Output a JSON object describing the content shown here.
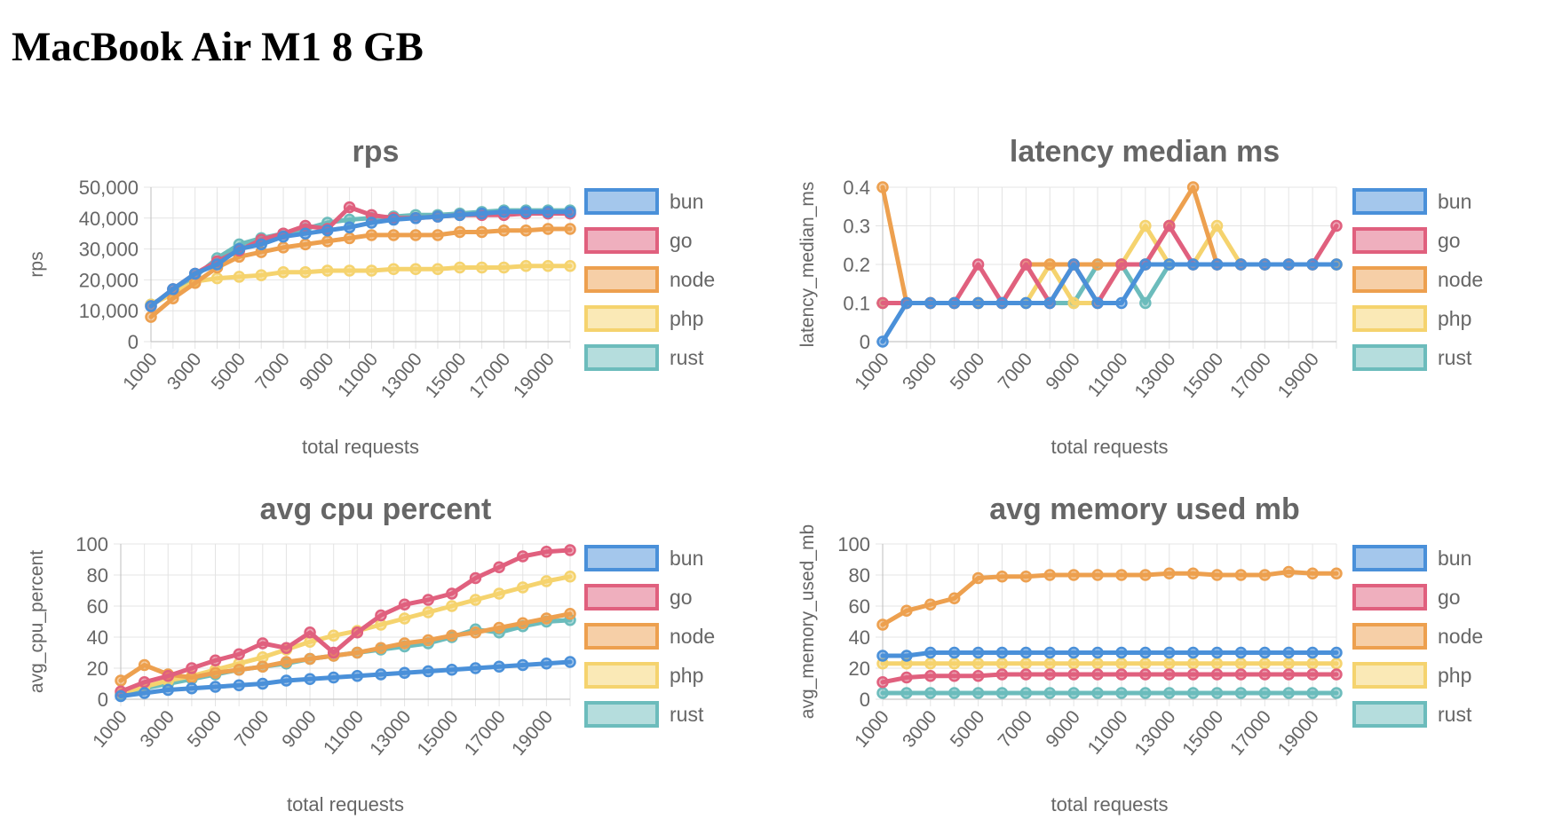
{
  "page": {
    "title": "MacBook Air M1 8 GB"
  },
  "colors": {
    "bun": "#4a90d9",
    "go": "#e0607e",
    "node": "#eda04f",
    "php": "#f5d36e",
    "rust": "#6cbcbc"
  },
  "chart_data": [
    {
      "type": "line",
      "title": "rps",
      "xlabel": "total requests",
      "ylabel": "rps",
      "ylim": [
        0,
        50000
      ],
      "yticks": [
        0,
        10000,
        20000,
        30000,
        40000,
        50000
      ],
      "ytick_labels": [
        "0",
        "10,000",
        "20,000",
        "30,000",
        "40,000",
        "50,000"
      ],
      "x": [
        1000,
        2000,
        3000,
        4000,
        5000,
        6000,
        7000,
        8000,
        9000,
        10000,
        11000,
        12000,
        13000,
        14000,
        15000,
        16000,
        17000,
        18000,
        19000,
        20000
      ],
      "xtick_labels": [
        "1000",
        "3000",
        "5000",
        "7000",
        "9000",
        "11000",
        "13000",
        "15000",
        "17000",
        "19000"
      ],
      "series": [
        {
          "name": "rust",
          "values": [
            12000,
            16000,
            21000,
            27000,
            31500,
            33500,
            35000,
            36500,
            38500,
            39500,
            40000,
            40500,
            41000,
            41000,
            41500,
            42000,
            42500,
            42500,
            42500,
            42500
          ]
        },
        {
          "name": "php",
          "values": [
            12000,
            15500,
            19500,
            20500,
            21000,
            21500,
            22500,
            22500,
            23000,
            23000,
            23000,
            23500,
            23500,
            23500,
            24000,
            24000,
            24000,
            24500,
            24500,
            24500
          ]
        },
        {
          "name": "node",
          "values": [
            8000,
            14000,
            19000,
            24000,
            27500,
            29000,
            30500,
            31500,
            32500,
            33500,
            34500,
            34500,
            34500,
            34500,
            35500,
            35500,
            36000,
            36000,
            36500,
            36500
          ]
        },
        {
          "name": "go",
          "values": [
            11500,
            17000,
            22000,
            26000,
            29500,
            33000,
            35000,
            37500,
            36500,
            43500,
            41000,
            40000,
            40000,
            40500,
            41000,
            41000,
            41000,
            41500,
            41500,
            41500
          ]
        },
        {
          "name": "bun",
          "values": [
            11500,
            17000,
            22000,
            25000,
            30000,
            31500,
            34000,
            35000,
            36000,
            37000,
            38500,
            39500,
            40000,
            40500,
            41000,
            41500,
            42000,
            42000,
            42000,
            42000
          ]
        }
      ],
      "legend": [
        "bun",
        "go",
        "node",
        "php",
        "rust"
      ]
    },
    {
      "type": "line",
      "title": "latency median ms",
      "xlabel": "total requests",
      "ylabel": "latency_median_ms",
      "ylim": [
        0,
        0.4
      ],
      "yticks": [
        0,
        0.1,
        0.2,
        0.3,
        0.4
      ],
      "ytick_labels": [
        "0",
        "0.1",
        "0.2",
        "0.3",
        "0.4"
      ],
      "x": [
        1000,
        2000,
        3000,
        4000,
        5000,
        6000,
        7000,
        8000,
        9000,
        10000,
        11000,
        12000,
        13000,
        14000,
        15000,
        16000,
        17000,
        18000,
        19000,
        20000
      ],
      "xtick_labels": [
        "1000",
        "3000",
        "5000",
        "7000",
        "9000",
        "11000",
        "13000",
        "15000",
        "17000",
        "19000"
      ],
      "series": [
        {
          "name": "rust",
          "values": [
            0.1,
            0.1,
            0.1,
            0.1,
            0.1,
            0.1,
            0.1,
            0.1,
            0.1,
            0.2,
            0.2,
            0.1,
            0.2,
            0.2,
            0.2,
            0.2,
            0.2,
            0.2,
            0.2,
            0.2
          ]
        },
        {
          "name": "php",
          "values": [
            0.1,
            0.1,
            0.1,
            0.1,
            0.1,
            0.1,
            0.1,
            0.2,
            0.1,
            0.1,
            0.2,
            0.3,
            0.2,
            0.2,
            0.3,
            0.2,
            0.2,
            0.2,
            0.2,
            0.2
          ]
        },
        {
          "name": "node",
          "values": [
            0.4,
            0.1,
            0.1,
            0.1,
            0.1,
            0.1,
            0.2,
            0.2,
            0.2,
            0.2,
            0.2,
            0.2,
            0.3,
            0.4,
            0.2,
            0.2,
            0.2,
            0.2,
            0.2,
            0.2
          ]
        },
        {
          "name": "go",
          "values": [
            0.1,
            0.1,
            0.1,
            0.1,
            0.2,
            0.1,
            0.2,
            0.1,
            0.2,
            0.1,
            0.2,
            0.2,
            0.3,
            0.2,
            0.2,
            0.2,
            0.2,
            0.2,
            0.2,
            0.3
          ]
        },
        {
          "name": "bun",
          "values": [
            0.0,
            0.1,
            0.1,
            0.1,
            0.1,
            0.1,
            0.1,
            0.1,
            0.2,
            0.1,
            0.1,
            0.2,
            0.2,
            0.2,
            0.2,
            0.2,
            0.2,
            0.2,
            0.2,
            0.2
          ]
        }
      ],
      "legend": [
        "bun",
        "go",
        "node",
        "php",
        "rust"
      ]
    },
    {
      "type": "line",
      "title": "avg cpu percent",
      "xlabel": "total requests",
      "ylabel": "avg_cpu_percent",
      "ylim": [
        0,
        100
      ],
      "yticks": [
        0,
        20,
        40,
        60,
        80,
        100
      ],
      "ytick_labels": [
        "0",
        "20",
        "40",
        "60",
        "80",
        "100"
      ],
      "x": [
        1000,
        2000,
        3000,
        4000,
        5000,
        6000,
        7000,
        8000,
        9000,
        10000,
        11000,
        12000,
        13000,
        14000,
        15000,
        16000,
        17000,
        18000,
        19000,
        20000
      ],
      "xtick_labels": [
        "1000",
        "3000",
        "5000",
        "7000",
        "9000",
        "11000",
        "13000",
        "15000",
        "17000",
        "19000"
      ],
      "series": [
        {
          "name": "rust",
          "values": [
            3,
            7,
            10,
            13,
            16,
            19,
            21,
            23,
            26,
            28,
            30,
            32,
            34,
            36,
            40,
            45,
            43,
            47,
            50,
            51
          ]
        },
        {
          "name": "php",
          "values": [
            4,
            8,
            12,
            15,
            19,
            23,
            27,
            32,
            37,
            41,
            44,
            48,
            52,
            56,
            60,
            64,
            68,
            72,
            76,
            79
          ]
        },
        {
          "name": "node",
          "values": [
            12,
            22,
            16,
            14,
            17,
            19,
            21,
            24,
            26,
            28,
            30,
            33,
            36,
            38,
            41,
            43,
            46,
            49,
            52,
            55
          ]
        },
        {
          "name": "go",
          "values": [
            5,
            11,
            15,
            20,
            25,
            29,
            36,
            33,
            43,
            30,
            43,
            54,
            61,
            64,
            68,
            78,
            85,
            92,
            95,
            96
          ]
        },
        {
          "name": "bun",
          "values": [
            2,
            4,
            6,
            7,
            8,
            9,
            10,
            12,
            13,
            14,
            15,
            16,
            17,
            18,
            19,
            20,
            21,
            22,
            23,
            24
          ]
        }
      ],
      "legend": [
        "bun",
        "go",
        "node",
        "php",
        "rust"
      ]
    },
    {
      "type": "line",
      "title": "avg memory used mb",
      "xlabel": "total requests",
      "ylabel": "avg_memory_used_mb",
      "ylim": [
        0,
        100
      ],
      "yticks": [
        0,
        20,
        40,
        60,
        80,
        100
      ],
      "ytick_labels": [
        "0",
        "20",
        "40",
        "60",
        "80",
        "100"
      ],
      "x": [
        1000,
        2000,
        3000,
        4000,
        5000,
        6000,
        7000,
        8000,
        9000,
        10000,
        11000,
        12000,
        13000,
        14000,
        15000,
        16000,
        17000,
        18000,
        19000,
        20000
      ],
      "xtick_labels": [
        "1000",
        "3000",
        "5000",
        "7000",
        "9000",
        "11000",
        "13000",
        "15000",
        "17000",
        "19000"
      ],
      "series": [
        {
          "name": "rust",
          "values": [
            4,
            4,
            4,
            4,
            4,
            4,
            4,
            4,
            4,
            4,
            4,
            4,
            4,
            4,
            4,
            4,
            4,
            4,
            4,
            4
          ]
        },
        {
          "name": "php",
          "values": [
            23,
            23,
            23,
            23,
            23,
            23,
            23,
            23,
            23,
            23,
            23,
            23,
            23,
            23,
            23,
            23,
            23,
            23,
            23,
            23
          ]
        },
        {
          "name": "go",
          "values": [
            11,
            14,
            15,
            15,
            15,
            16,
            16,
            16,
            16,
            16,
            16,
            16,
            16,
            16,
            16,
            16,
            16,
            16,
            16,
            16
          ]
        },
        {
          "name": "bun",
          "values": [
            28,
            28,
            30,
            30,
            30,
            30,
            30,
            30,
            30,
            30,
            30,
            30,
            30,
            30,
            30,
            30,
            30,
            30,
            30,
            30
          ]
        },
        {
          "name": "node",
          "values": [
            48,
            57,
            61,
            65,
            78,
            79,
            79,
            80,
            80,
            80,
            80,
            80,
            81,
            81,
            80,
            80,
            80,
            82,
            81,
            81
          ]
        }
      ],
      "legend": [
        "bun",
        "go",
        "node",
        "php",
        "rust"
      ]
    }
  ]
}
